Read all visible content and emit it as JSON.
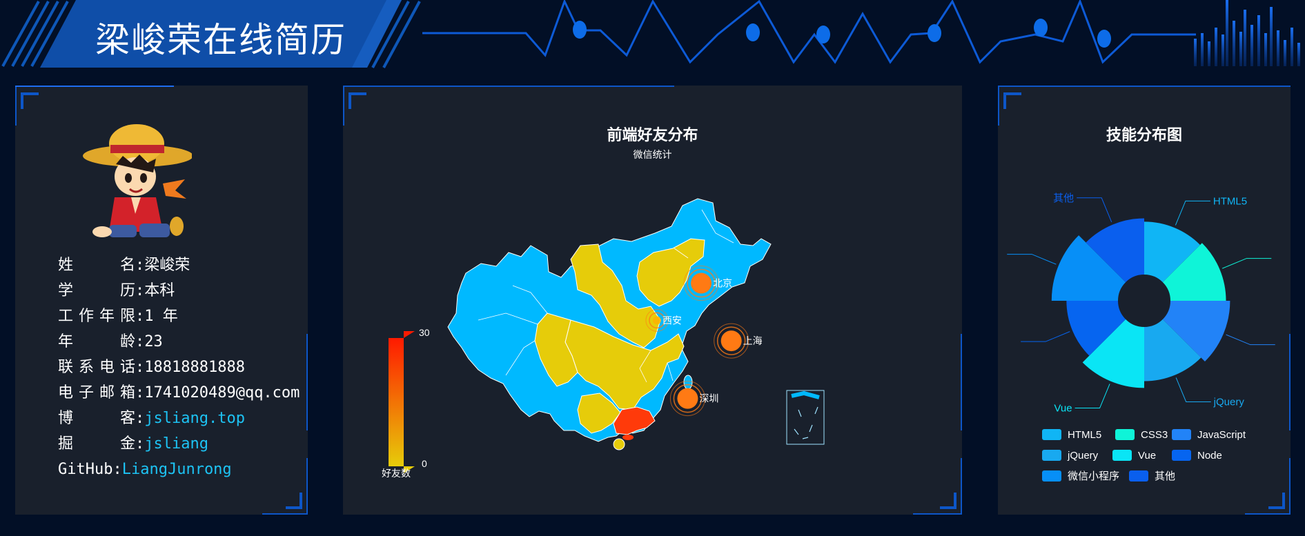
{
  "header": {
    "title": "梁峻荣在线简历"
  },
  "profile": {
    "avatar_icon": "straw-hat-cartoon-avatar",
    "items": [
      {
        "key": "name",
        "label": "姓名",
        "value": "梁峻荣"
      },
      {
        "key": "education",
        "label": "学历",
        "value": "本科"
      },
      {
        "key": "experience",
        "label": "工作年限",
        "value": "1 年"
      },
      {
        "key": "age",
        "label": "年龄",
        "value": "23"
      },
      {
        "key": "phone",
        "label": "联系电话",
        "value": "18818881888"
      },
      {
        "key": "email",
        "label": "电子邮箱",
        "value": "1741020489@qq.com"
      },
      {
        "key": "blog",
        "label": "博客",
        "value": "jsliang.top"
      },
      {
        "key": "juejin",
        "label": "掘金",
        "value": "jsliang"
      },
      {
        "key": "github",
        "label": "GitHub",
        "value": "LiangJunrong"
      }
    ],
    "separator": ":"
  },
  "map": {
    "title": "前端好友分布",
    "subtitle": "微信统计",
    "legend_name": "好友数",
    "legend_max": "30",
    "legend_min": "0",
    "colors": {
      "low": "#e6cc0a",
      "high": "#ff1a00",
      "base": "#00b9ff"
    },
    "cities": [
      {
        "name": "北京",
        "lon": 116.4,
        "lat": 39.9
      },
      {
        "name": "西安",
        "lon": 108.9,
        "lat": 34.3
      },
      {
        "name": "上海",
        "lon": 121.5,
        "lat": 31.2
      },
      {
        "name": "深圳",
        "lon": 114.1,
        "lat": 22.5
      }
    ]
  },
  "chart_data": {
    "type": "pie",
    "subtype": "nightingale-rose",
    "title": "技能分布图",
    "categories": [
      "HTML5",
      "CSS3",
      "JavaScript",
      "jQuery",
      "Vue",
      "Node",
      "微信小程序",
      "其他"
    ],
    "radius_values": [
      70,
      74,
      80,
      72,
      82,
      68,
      90,
      75
    ],
    "colors": [
      "#10b5f5",
      "#0ff4d8",
      "#2283f7",
      "#18a9f0",
      "#0ae5f5",
      "#0665f0",
      "#078ff7",
      "#0a5fee"
    ],
    "legend": {
      "placement": "bottom"
    }
  }
}
